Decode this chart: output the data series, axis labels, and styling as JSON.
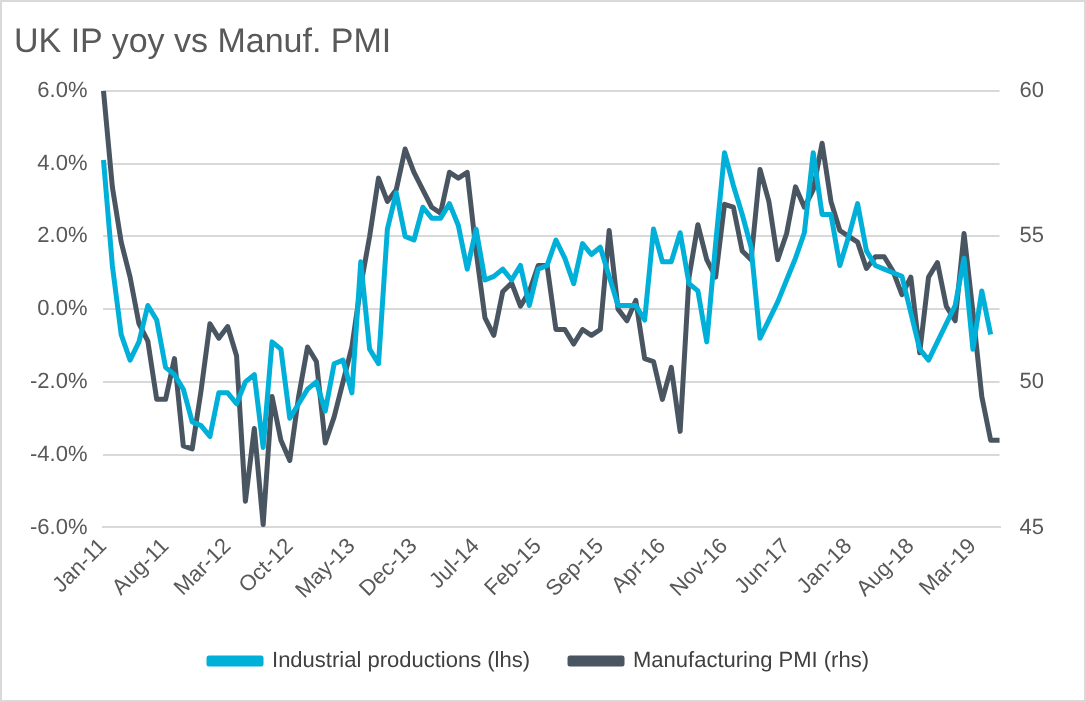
{
  "chart_data": {
    "type": "line",
    "title": "UK IP yoy vs Manuf. PMI",
    "categories": [
      "Jan-11",
      null,
      null,
      null,
      null,
      null,
      null,
      "Aug-11",
      null,
      null,
      null,
      null,
      null,
      null,
      "Mar-12",
      null,
      null,
      null,
      null,
      null,
      null,
      "Oct-12",
      null,
      null,
      null,
      null,
      null,
      null,
      "May-13",
      null,
      null,
      null,
      null,
      null,
      null,
      "Dec-13",
      null,
      null,
      null,
      null,
      null,
      null,
      "Jul-14",
      null,
      null,
      null,
      null,
      null,
      null,
      "Feb-15",
      null,
      null,
      null,
      null,
      null,
      null,
      "Sep-15",
      null,
      null,
      null,
      null,
      null,
      null,
      "Apr-16",
      null,
      null,
      null,
      null,
      null,
      null,
      "Nov-16",
      null,
      null,
      null,
      null,
      null,
      null,
      "Jun-17",
      null,
      null,
      null,
      null,
      null,
      null,
      "Jan-18",
      null,
      null,
      null,
      null,
      null,
      null,
      "Aug-18",
      null,
      null,
      null,
      null,
      null,
      null,
      "Mar-19",
      null,
      null,
      null
    ],
    "series": [
      {
        "name": "Industrial productions (lhs)",
        "color": "#00b0d8",
        "values": [
          4.1,
          1.2,
          -0.7,
          -1.4,
          -0.9,
          0.1,
          -0.3,
          -1.6,
          -1.8,
          -2.2,
          -3.1,
          -3.2,
          -3.5,
          -2.3,
          -2.3,
          -2.6,
          -2.0,
          -1.8,
          -3.8,
          -0.9,
          -1.1,
          -3.0,
          -2.6,
          -2.2,
          -2.0,
          -2.8,
          -1.5,
          -1.4,
          -2.3,
          1.3,
          -1.1,
          -1.5,
          2.2,
          3.2,
          2.0,
          1.9,
          2.8,
          2.5,
          2.5,
          2.9,
          2.3,
          1.1,
          2.2,
          0.8,
          0.9,
          1.1,
          0.8,
          1.2,
          0.1,
          1.1,
          1.2,
          1.9,
          1.4,
          0.7,
          1.8,
          1.5,
          1.7,
          0.9,
          0.1,
          0.1,
          0.1,
          -0.3,
          2.2,
          1.3,
          1.3,
          2.1,
          0.7,
          0.5,
          -0.9,
          1.8,
          4.3,
          3.4,
          2.6,
          1.7,
          -0.8,
          -0.3,
          0.2,
          0.8,
          1.4,
          2.1,
          4.3,
          2.6,
          2.6,
          1.2,
          2.0,
          2.9,
          1.6,
          1.2,
          1.1,
          1.0,
          0.9,
          -0.1,
          -1.1,
          -1.4,
          -0.9,
          -0.4,
          0.1,
          1.4,
          -1.1,
          0.5,
          -0.7,
          null
        ]
      },
      {
        "name": "Manufacturing PMI (rhs)",
        "color": "#4a5562",
        "axis": "y2",
        "values": [
          60,
          56.7,
          54.8,
          53.6,
          52.0,
          51.4,
          49.4,
          49.4,
          50.8,
          47.8,
          47.7,
          49.7,
          52.0,
          51.5,
          51.9,
          50.9,
          45.9,
          48.4,
          45.1,
          49.5,
          48.0,
          47.3,
          49.5,
          51.2,
          50.7,
          47.9,
          48.8,
          50.0,
          51.2,
          53.3,
          55.0,
          57.0,
          56.2,
          56.6,
          58.0,
          57.2,
          56.6,
          56.0,
          55.8,
          57.2,
          57.0,
          57.2,
          54.5,
          52.2,
          51.6,
          53.1,
          53.4,
          52.6,
          53.1,
          54.0,
          54.0,
          51.8,
          51.8,
          51.3,
          51.8,
          51.6,
          51.8,
          55.2,
          52.5,
          52.1,
          52.8,
          50.8,
          50.7,
          49.4,
          50.5,
          48.3,
          53.6,
          55.4,
          54.2,
          53.6,
          56.1,
          56.0,
          54.5,
          54.2,
          57.3,
          56.2,
          54.2,
          55.1,
          56.7,
          56.0,
          56.6,
          58.2,
          56.2,
          55.2,
          55.0,
          54.8,
          53.9,
          54.3,
          54.3,
          53.8,
          53.0,
          53.6,
          51.0,
          53.6,
          54.1,
          52.6,
          52.1,
          55.1,
          52.4,
          49.5,
          48.0,
          48.0
        ]
      }
    ],
    "ylim": [
      -6,
      6
    ],
    "yticks": [
      {
        "value": -6,
        "label": "-6.0%"
      },
      {
        "value": -4,
        "label": "-4.0%"
      },
      {
        "value": -2,
        "label": "-2.0%"
      },
      {
        "value": 0,
        "label": "0.0%"
      },
      {
        "value": 2,
        "label": "2.0%"
      },
      {
        "value": 4,
        "label": "4.0%"
      },
      {
        "value": 6,
        "label": "6.0%"
      }
    ],
    "y2lim": [
      45,
      60
    ],
    "y2ticks": [
      45,
      50,
      55,
      60
    ],
    "grid": "y",
    "legend": "bottom"
  }
}
